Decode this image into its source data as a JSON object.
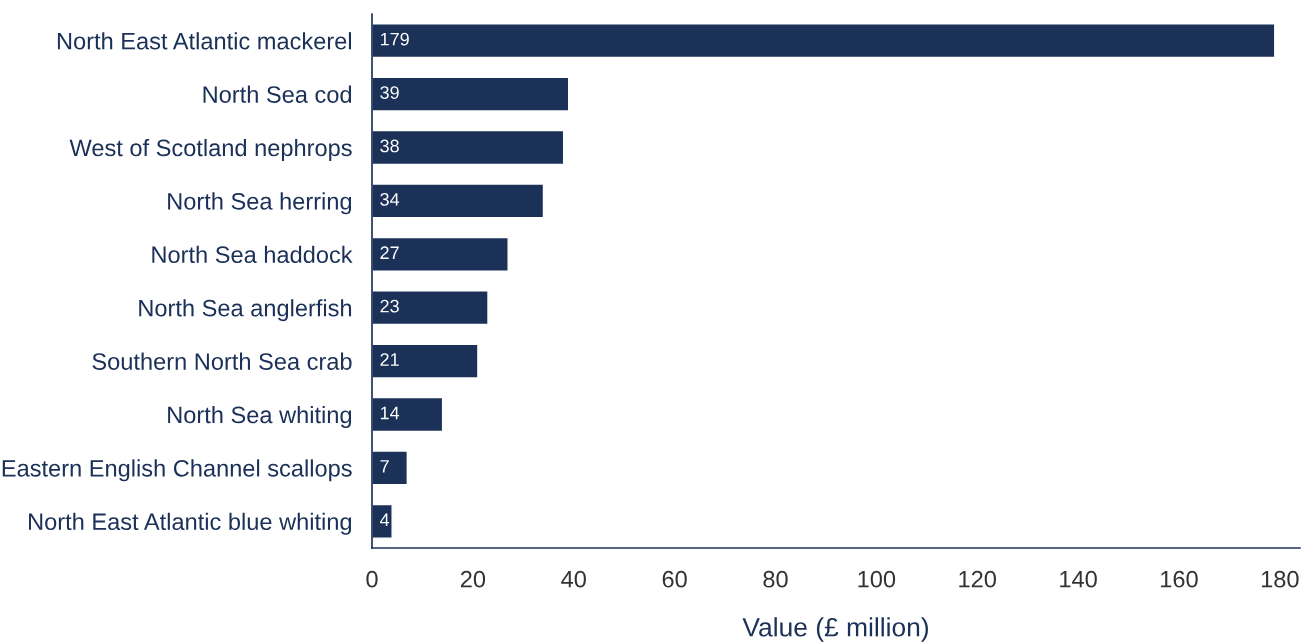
{
  "chart_data": {
    "type": "bar",
    "orientation": "horizontal",
    "categories": [
      "North East Atlantic mackerel",
      "North Sea cod",
      "West of Scotland nephrops",
      "North Sea herring",
      "North Sea haddock",
      "North Sea anglerfish",
      "Southern North Sea crab",
      "North Sea whiting",
      "Eastern English Channel scallops",
      "North East Atlantic blue whiting"
    ],
    "values": [
      179,
      39,
      38,
      34,
      27,
      23,
      21,
      14,
      7,
      4
    ],
    "color": "#1b3158",
    "xlabel": "Value (£ million)",
    "xlim": [
      0,
      184
    ],
    "xticks": [
      0,
      20,
      40,
      60,
      80,
      100,
      120,
      140,
      160,
      180
    ],
    "data_labels": true,
    "grid": false,
    "legend": false
  }
}
